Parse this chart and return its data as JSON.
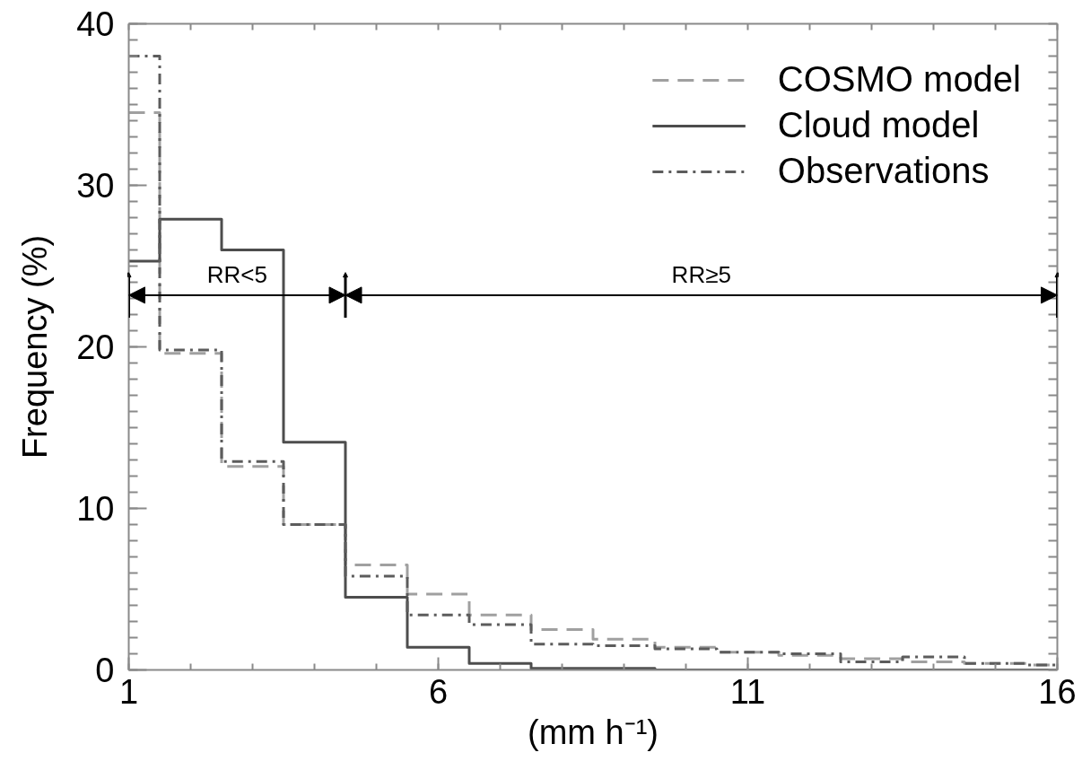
{
  "chart_data": {
    "type": "histogram",
    "xlabel": "(mm h⁻¹)",
    "ylabel": "Frequency (%)",
    "bins": [
      1,
      1.5,
      2.5,
      3.5,
      4.5,
      5.5,
      6.5,
      7.5,
      8.5,
      9.5,
      10.5,
      11.5,
      12.5,
      13.5,
      14.5,
      15.5,
      16
    ],
    "series": [
      {
        "name": "COSMO model",
        "color": "#a0a0a0",
        "line_style": "dashed",
        "values": [
          34.5,
          19.6,
          12.6,
          9.0,
          6.5,
          4.7,
          3.4,
          2.5,
          1.9,
          1.4,
          1.1,
          0.9,
          0.7,
          0.5,
          0.4,
          0.3
        ]
      },
      {
        "name": "Cloud model",
        "color": "#4d4d4d",
        "line_style": "solid",
        "values": [
          25.3,
          27.9,
          26.0,
          14.1,
          4.5,
          1.4,
          0.4,
          0.1,
          0.1,
          0,
          0,
          0,
          0,
          0,
          0,
          0
        ]
      },
      {
        "name": "Observations",
        "color": "#5c5c5c",
        "line_style": "dashdot",
        "values": [
          38.0,
          19.8,
          12.9,
          9.0,
          5.8,
          3.4,
          2.8,
          1.6,
          1.5,
          1.3,
          1.1,
          1.0,
          0.5,
          0.8,
          0.4,
          0.3
        ]
      }
    ],
    "xlim": [
      1,
      16
    ],
    "xticks": [
      1,
      6,
      11,
      16
    ],
    "ylim": [
      0,
      40
    ],
    "yticks": [
      0,
      10,
      20,
      30,
      40
    ],
    "legend": "top right",
    "grid": false,
    "annotations": [
      "RR<5",
      "RR≥5"
    ]
  }
}
